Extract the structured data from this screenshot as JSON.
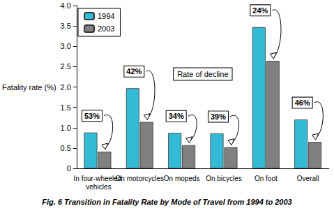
{
  "chart_data": {
    "type": "bar",
    "title": "Fig. 6 Transition in Fatality Rate by Mode of Travel from 1994 to 2003",
    "y_label": "Fatality rate (%)",
    "categories": [
      "In four-wheeled vehicles",
      "On motorcycles",
      "On mopeds",
      "On bicycles",
      "On foot",
      "Overall"
    ],
    "series": [
      {
        "name": "1994",
        "color": "#33bbd6",
        "values": [
          0.88,
          1.97,
          0.87,
          0.86,
          3.47,
          1.2
        ]
      },
      {
        "name": "2003",
        "color": "#808080",
        "values": [
          0.41,
          1.14,
          0.57,
          0.52,
          2.64,
          0.65
        ]
      }
    ],
    "ylim": [
      0,
      4
    ],
    "yticks": [
      0,
      0.5,
      {
        "value": 1,
        "label": "1.0"
      },
      1.5,
      {
        "value": 2,
        "label": "2.0"
      },
      2.5,
      {
        "value": 3,
        "label": "3.0"
      },
      3.5,
      {
        "value": 4,
        "label": "4.0"
      }
    ],
    "grid": false,
    "legend": "upper left",
    "annotations": {
      "title": "Rate of decline",
      "labels": [
        "53%",
        "42%",
        "34%",
        "39%",
        "24%",
        "46%"
      ]
    }
  }
}
